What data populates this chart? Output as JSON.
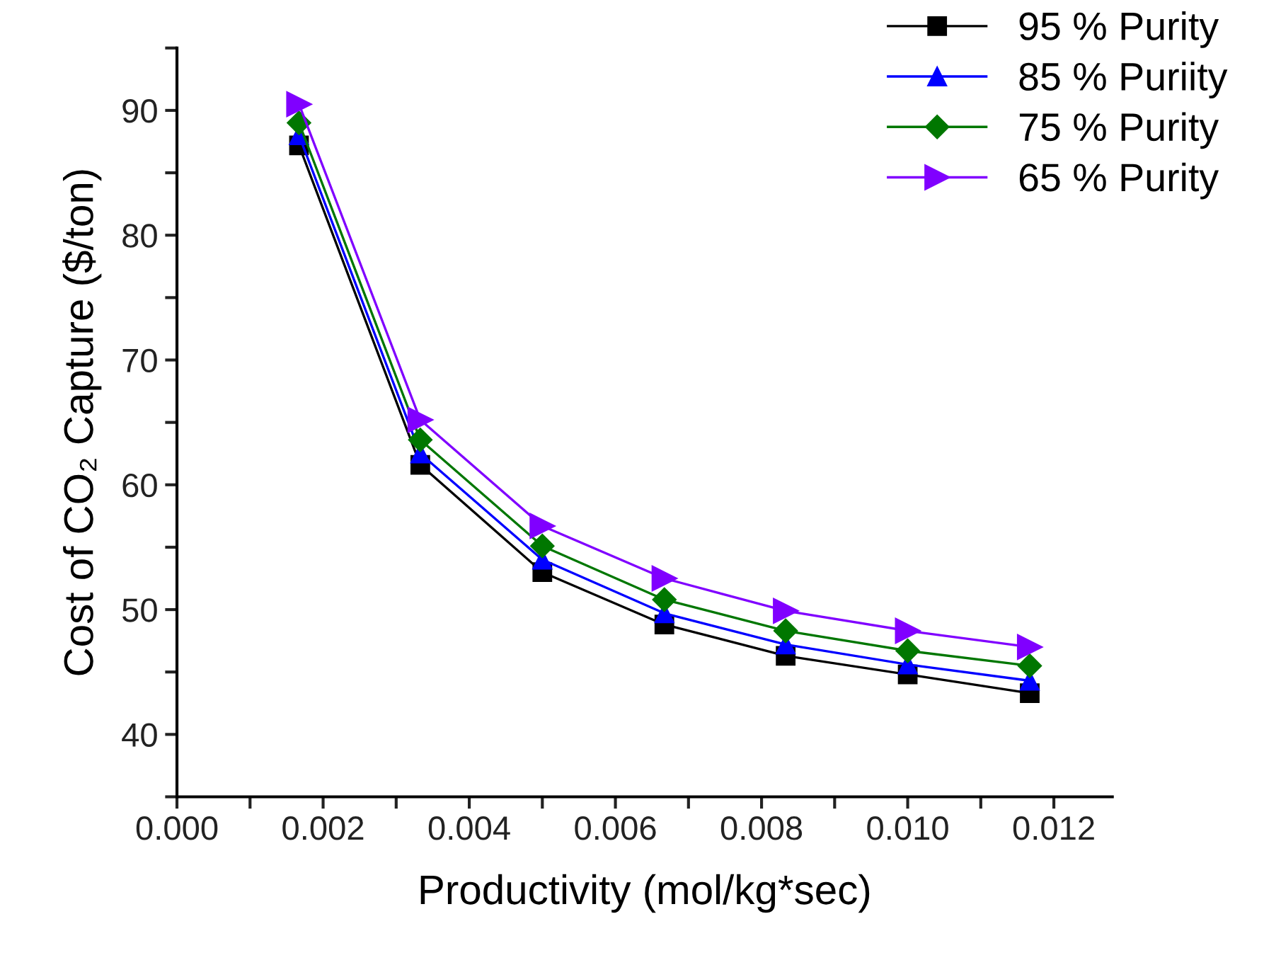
{
  "chart_data": {
    "type": "line",
    "xlabel": "Productivity (mol/kg*sec)",
    "ylabel": "Cost of CO₂ Capture ($/ton)",
    "x": [
      0.00167,
      0.00333,
      0.005,
      0.00667,
      0.00833,
      0.01,
      0.01167
    ],
    "series": [
      {
        "name": "95 % Purity",
        "color": "#000000",
        "marker": "square",
        "values": [
          87.2,
          61.6,
          53.0,
          48.8,
          46.3,
          44.8,
          43.3
        ]
      },
      {
        "name": "85 % Puriity",
        "color": "#0000ff",
        "marker": "triangle",
        "values": [
          88.0,
          62.5,
          54.0,
          49.7,
          47.2,
          45.6,
          44.3
        ]
      },
      {
        "name": "75 % Purity",
        "color": "#007700",
        "marker": "diamond",
        "values": [
          89.0,
          63.6,
          55.1,
          50.8,
          48.3,
          46.7,
          45.5
        ]
      },
      {
        "name": "65 % Purity",
        "color": "#8000ff",
        "marker": "triangle_right",
        "values": [
          90.5,
          65.2,
          56.7,
          52.5,
          49.9,
          48.3,
          47.0
        ]
      }
    ],
    "xlim": [
      0,
      0.0128
    ],
    "ylim": [
      35,
      95
    ],
    "xticks": [
      {
        "value": 0,
        "label": "0.000"
      },
      {
        "value": 0.001,
        "label": null
      },
      {
        "value": 0.002,
        "label": "0.002"
      },
      {
        "value": 0.003,
        "label": null
      },
      {
        "value": 0.004,
        "label": "0.004"
      },
      {
        "value": 0.005,
        "label": null
      },
      {
        "value": 0.006,
        "label": "0.006"
      },
      {
        "value": 0.007,
        "label": null
      },
      {
        "value": 0.008,
        "label": "0.008"
      },
      {
        "value": 0.009,
        "label": null
      },
      {
        "value": 0.01,
        "label": "0.010"
      },
      {
        "value": 0.011,
        "label": null
      },
      {
        "value": 0.012,
        "label": "0.012"
      }
    ],
    "yticks": [
      {
        "value": 35,
        "label": null
      },
      40,
      {
        "value": 45,
        "label": null
      },
      50,
      {
        "value": 55,
        "label": null
      },
      60,
      {
        "value": 65,
        "label": null
      },
      70,
      {
        "value": 75,
        "label": null
      },
      80,
      {
        "value": 85,
        "label": null
      },
      90,
      {
        "value": 95,
        "label": null
      }
    ],
    "grid": false,
    "legend": "top right",
    "line_style": "solid"
  }
}
